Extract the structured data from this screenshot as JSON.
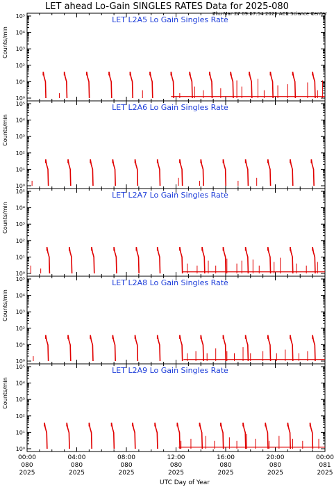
{
  "figure": {
    "title": "LET ahead Lo-Gain SINGLES RATES Data for 2025-080",
    "timestamp": "Thu Mar 27 09:57:54 2025 ACE Science Center",
    "xlabel": "UTC Day of Year",
    "ylabel": "Counts/min",
    "series_color": "#e00000",
    "panel_title_color": "#1f3fd9",
    "x_ticks": [
      {
        "time": "00:00",
        "day": "080",
        "year": "2025"
      },
      {
        "time": "04:00",
        "day": "080",
        "year": "2025"
      },
      {
        "time": "08:00",
        "day": "080",
        "year": "2025"
      },
      {
        "time": "12:00",
        "day": "080",
        "year": "2025"
      },
      {
        "time": "16:00",
        "day": "080",
        "year": "2025"
      },
      {
        "time": "20:00",
        "day": "080",
        "year": "2025"
      },
      {
        "time": "00:00",
        "day": "081",
        "year": "2025"
      }
    ],
    "y_tick_labels": [
      "10⁰",
      "10¹",
      "10²",
      "10³",
      "10⁴",
      "10⁵"
    ]
  },
  "chart_data": [
    {
      "type": "line",
      "title": "LET L2A5 Lo Gain Singles Rate",
      "xlabel": "",
      "ylabel": "Counts/min",
      "xlim_hours": [
        0,
        24
      ],
      "ylim": [
        1,
        100000
      ],
      "yscale": "log",
      "burst_hours": [
        1.3,
        3.0,
        4.8,
        6.6,
        8.3,
        9.9,
        11.6,
        13.1,
        14.7,
        16.4,
        17.9,
        19.6,
        21.4,
        23.0
      ],
      "peak": 40,
      "spike_hours": [
        2.6,
        9.3,
        12.3,
        13.5,
        14.2,
        14.9,
        15.6,
        16.9,
        17.3,
        18.6,
        19.1,
        20.2,
        21.0,
        22.6,
        23.4,
        23.8
      ],
      "spike_values": [
        2,
        3,
        2,
        5,
        3,
        8,
        4,
        12,
        5,
        15,
        3,
        6,
        7,
        9,
        3,
        12
      ],
      "baseline_from_hours": 11.6
    },
    {
      "type": "line",
      "title": "LET L2A6 Lo Gain Singles Rate",
      "xlabel": "",
      "ylabel": "Counts/min",
      "xlim_hours": [
        0,
        24
      ],
      "ylim": [
        1,
        100000
      ],
      "yscale": "log",
      "burst_hours": [
        1.5,
        3.3,
        5.1,
        6.9,
        8.7,
        10.5,
        12.3,
        14.0,
        15.8,
        17.6,
        19.4,
        21.2,
        22.9
      ],
      "peak": 40,
      "spike_hours": [
        0.4,
        12.2,
        13.9,
        17.0,
        18.5
      ],
      "spike_values": [
        2,
        3,
        2,
        2,
        3
      ],
      "baseline_from_hours": 24
    },
    {
      "type": "line",
      "title": "LET L2A7 Lo Gain Singles Rate",
      "xlabel": "",
      "ylabel": "Counts/min",
      "xlim_hours": [
        0,
        24
      ],
      "ylim": [
        1,
        100000
      ],
      "yscale": "log",
      "burst_hours": [
        1.6,
        3.4,
        5.2,
        7.0,
        8.8,
        10.5,
        12.3,
        14.1,
        15.8,
        17.6,
        19.4,
        21.2,
        23.0
      ],
      "peak": 40,
      "spike_hours": [
        0.3,
        1.1,
        12.9,
        13.7,
        14.6,
        15.2,
        16.1,
        16.9,
        17.3,
        18.2,
        18.7,
        19.9,
        20.4,
        21.7,
        22.5,
        23.4
      ],
      "spike_values": [
        3,
        2,
        4,
        3,
        6,
        3,
        8,
        4,
        6,
        7,
        3,
        5,
        9,
        4,
        3,
        5
      ],
      "baseline_from_hours": 12.5
    },
    {
      "type": "line",
      "title": "LET L2A8 Lo Gain Singles Rate",
      "xlabel": "",
      "ylabel": "Counts/min",
      "xlim_hours": [
        0,
        24
      ],
      "ylim": [
        1,
        100000
      ],
      "yscale": "log",
      "burst_hours": [
        1.5,
        3.3,
        5.1,
        6.9,
        8.7,
        10.5,
        12.3,
        14.0,
        15.8,
        17.6,
        19.4,
        21.2,
        23.0
      ],
      "peak": 38,
      "spike_hours": [
        0.5,
        12.9,
        13.6,
        14.5,
        15.2,
        16.1,
        16.7,
        17.4,
        18.0,
        19.0,
        20.1,
        20.8,
        21.9,
        22.6
      ],
      "spike_values": [
        2,
        3,
        4,
        3,
        6,
        4,
        3,
        7,
        3,
        4,
        3,
        5,
        3,
        4
      ],
      "baseline_from_hours": 12.6
    },
    {
      "type": "line",
      "title": "LET L2A9 Lo Gain Singles Rate",
      "xlabel": "",
      "ylabel": "Counts/min",
      "xlim_hours": [
        0,
        24
      ],
      "ylim": [
        1,
        100000
      ],
      "yscale": "log",
      "burst_hours": [
        1.4,
        3.2,
        5.0,
        6.8,
        8.5,
        10.3,
        12.1,
        13.9,
        15.6,
        17.4,
        19.2,
        21.0,
        22.8
      ],
      "peak": 38,
      "spike_hours": [
        12.4,
        13.2,
        14.4,
        15.1,
        16.3,
        16.9,
        17.7,
        18.4,
        19.5,
        20.3,
        21.4,
        22.2,
        23.5
      ],
      "spike_values": [
        3,
        4,
        6,
        3,
        5,
        3,
        8,
        4,
        3,
        6,
        4,
        3,
        4
      ],
      "baseline_from_hours": 12.2
    }
  ]
}
